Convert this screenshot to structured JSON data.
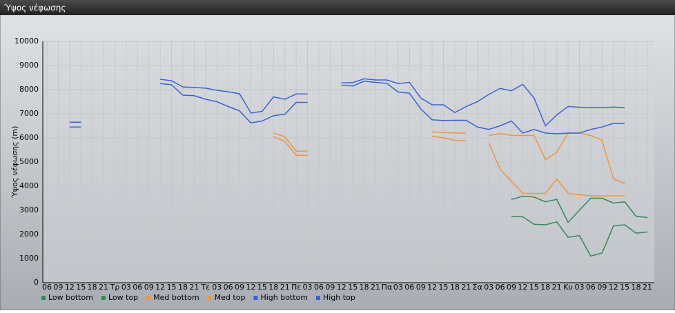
{
  "header": {
    "title": "Ύψος νέφωσης"
  },
  "chart_data": {
    "type": "line",
    "y_label": "Ύψος νέφωσης (m)",
    "categories": [
      "06",
      "09",
      "12",
      "15",
      "18",
      "21",
      "Τρ",
      "03",
      "06",
      "09",
      "12",
      "15",
      "18",
      "21",
      "Τε",
      "03",
      "06",
      "09",
      "12",
      "15",
      "18",
      "21",
      "Πε",
      "03",
      "06",
      "09",
      "12",
      "15",
      "18",
      "21",
      "Πα",
      "03",
      "06",
      "09",
      "12",
      "15",
      "18",
      "21",
      "Σα",
      "03",
      "06",
      "09",
      "12",
      "15",
      "18",
      "21",
      "Κυ",
      "03",
      "06",
      "09",
      "12",
      "15",
      "18",
      "21"
    ],
    "ylim": [
      0,
      10000
    ],
    "yticks": [
      0,
      1000,
      2000,
      3000,
      4000,
      5000,
      6000,
      7000,
      8000,
      9000,
      10000
    ],
    "grid": true,
    "series": [
      {
        "name": "Low bottom",
        "color": "#2e8b57",
        "values": [
          null,
          null,
          null,
          null,
          null,
          null,
          null,
          null,
          null,
          null,
          null,
          null,
          null,
          null,
          null,
          null,
          null,
          null,
          null,
          null,
          null,
          null,
          null,
          null,
          null,
          null,
          null,
          null,
          null,
          null,
          null,
          null,
          null,
          null,
          null,
          null,
          null,
          null,
          null,
          null,
          null,
          2750,
          2730,
          2420,
          2400,
          2520,
          1880,
          1950,
          1100,
          1230,
          2350,
          2400,
          2050,
          2100
        ]
      },
      {
        "name": "Low top",
        "color": "#2e8b57",
        "values": [
          null,
          null,
          null,
          null,
          null,
          null,
          null,
          null,
          null,
          null,
          null,
          null,
          null,
          null,
          null,
          null,
          null,
          null,
          null,
          null,
          null,
          null,
          null,
          null,
          null,
          null,
          null,
          null,
          null,
          null,
          null,
          null,
          null,
          null,
          null,
          null,
          null,
          null,
          null,
          null,
          null,
          3450,
          3580,
          3550,
          3350,
          3450,
          2500,
          3000,
          3500,
          3500,
          3300,
          3350,
          2750,
          2700
        ]
      },
      {
        "name": "Med bottom",
        "color": "#f0953a",
        "values": [
          null,
          null,
          null,
          null,
          null,
          null,
          null,
          null,
          null,
          null,
          null,
          null,
          null,
          null,
          null,
          null,
          null,
          null,
          null,
          null,
          6050,
          5850,
          5280,
          5280,
          null,
          null,
          null,
          null,
          null,
          null,
          null,
          null,
          null,
          null,
          6070,
          6000,
          5900,
          5870,
          null,
          5800,
          4700,
          4200,
          3700,
          3700,
          3700,
          4300,
          3700,
          3650,
          3600,
          3600,
          3600,
          3600,
          null,
          null
        ]
      },
      {
        "name": "Med top",
        "color": "#f0953a",
        "values": [
          null,
          null,
          null,
          null,
          null,
          null,
          null,
          null,
          null,
          null,
          null,
          null,
          null,
          null,
          null,
          null,
          null,
          null,
          null,
          null,
          6200,
          6050,
          5450,
          5450,
          null,
          null,
          null,
          null,
          null,
          null,
          null,
          null,
          null,
          null,
          6250,
          6220,
          6200,
          6200,
          null,
          6100,
          6180,
          6100,
          6100,
          6100,
          5100,
          5400,
          6200,
          6200,
          6100,
          5900,
          4300,
          4100,
          null,
          null
        ]
      },
      {
        "name": "High bottom",
        "color": "#3a62d6",
        "values": [
          null,
          null,
          6450,
          6450,
          null,
          null,
          null,
          null,
          null,
          null,
          8250,
          8200,
          7770,
          7750,
          7600,
          7500,
          7300,
          7120,
          6620,
          6700,
          6920,
          6980,
          7470,
          7470,
          null,
          null,
          8180,
          8150,
          8350,
          8300,
          8260,
          7900,
          7850,
          7200,
          6750,
          6720,
          6730,
          6730,
          6450,
          6350,
          6500,
          6700,
          6200,
          6350,
          6200,
          6170,
          6200,
          6200,
          6350,
          6450,
          6600,
          6600,
          null,
          null
        ]
      },
      {
        "name": "High top",
        "color": "#3a62d6",
        "values": [
          null,
          null,
          6650,
          6650,
          null,
          null,
          null,
          null,
          null,
          null,
          8430,
          8370,
          8110,
          8090,
          8060,
          7970,
          7910,
          7830,
          7030,
          7100,
          7700,
          7600,
          7820,
          7820,
          null,
          null,
          8280,
          8290,
          8450,
          8400,
          8400,
          8250,
          8300,
          7650,
          7370,
          7370,
          7050,
          7300,
          7500,
          7800,
          8050,
          7950,
          8220,
          7650,
          6500,
          6950,
          7300,
          7270,
          7250,
          7250,
          7280,
          7250,
          null,
          null
        ]
      }
    ]
  }
}
